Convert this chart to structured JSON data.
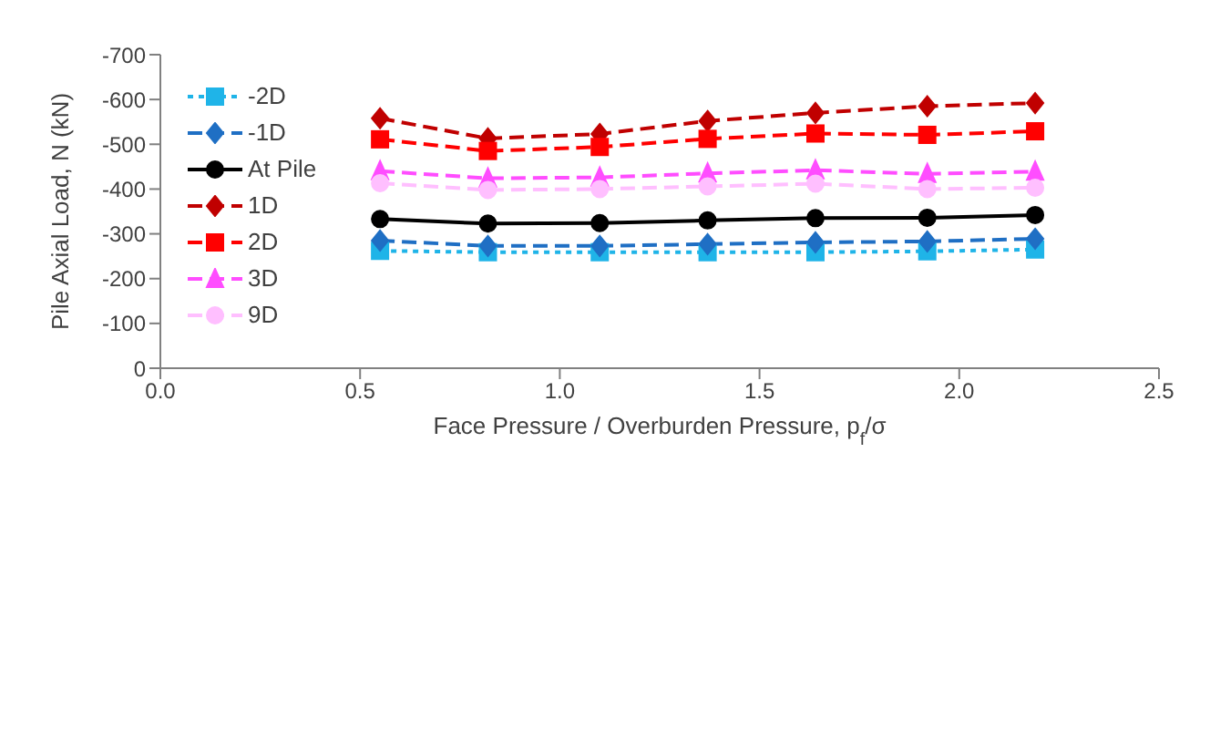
{
  "chart_data": {
    "type": "line",
    "xlabel": "Face Pressure / Overburden Pressure, p$_{f}$/σ",
    "ylabel": "Pile Axial Load, N (kN)",
    "x": [
      0.55,
      0.82,
      1.1,
      1.37,
      1.64,
      1.92,
      2.19
    ],
    "xlim": [
      0,
      2.5
    ],
    "xticks": [
      {
        "value": 0,
        "label": "0.0"
      },
      0.5,
      {
        "value": 1,
        "label": "1.0"
      },
      1.5,
      {
        "value": 2,
        "label": "2.0"
      },
      2.5
    ],
    "ylim": [
      0,
      -700
    ],
    "yticks": [
      0,
      -100,
      -200,
      -300,
      -400,
      -500,
      -600,
      -700
    ],
    "grid": false,
    "legend": "top left",
    "series": [
      {
        "name": "-2D",
        "color": "#1fb4e8",
        "marker": "square",
        "line_style": "dotted",
        "values": [
          -262,
          -259,
          -259,
          -259,
          -259,
          -261,
          -265
        ]
      },
      {
        "name": "-1D",
        "color": "#1f6fc4",
        "marker": "diamond",
        "line_style": "dashed",
        "values": [
          -285,
          -273,
          -273,
          -277,
          -281,
          -283,
          -289
        ]
      },
      {
        "name": "At Pile",
        "color": "#000000",
        "marker": "circle",
        "line_style": "solid",
        "values": [
          -333,
          -323,
          -324,
          -330,
          -335,
          -336,
          -342
        ]
      },
      {
        "name": "1D",
        "color": "#c00000",
        "marker": "diamond",
        "line_style": "dashed",
        "values": [
          -558,
          -513,
          -523,
          -552,
          -570,
          -585,
          -592
        ]
      },
      {
        "name": "2D",
        "color": "#ff0000",
        "marker": "square",
        "line_style": "dashed",
        "values": [
          -511,
          -485,
          -494,
          -512,
          -524,
          -521,
          -529
        ]
      },
      {
        "name": "3D",
        "color": "#ff4dff",
        "marker": "triangle",
        "line_style": "dashed",
        "values": [
          -440,
          -424,
          -426,
          -435,
          -442,
          -434,
          -439
        ]
      },
      {
        "name": "9D",
        "color": "#ffbfff",
        "marker": "circle",
        "line_style": "dashed",
        "values": [
          -413,
          -398,
          -400,
          -406,
          -412,
          -400,
          -403
        ]
      }
    ]
  }
}
